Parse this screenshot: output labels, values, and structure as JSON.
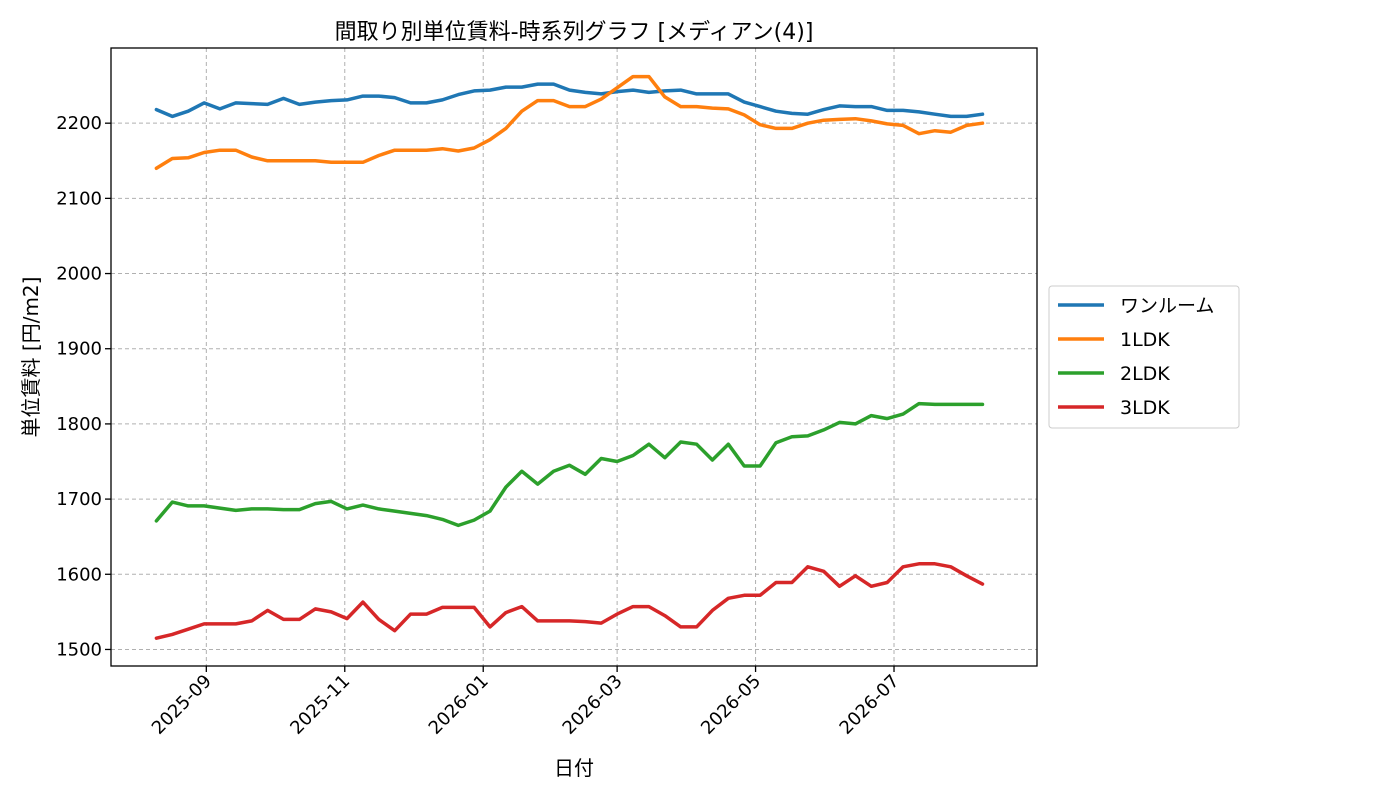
{
  "chart_data": {
    "type": "line",
    "title": "間取り別単位賃料-時系列グラフ [メディアン(4)]",
    "xlabel": "日付",
    "ylabel": "単位賃料 [円/m2]",
    "xlim": [
      "2025-07-21",
      "2026-09-02"
    ],
    "ylim": [
      1478,
      2300
    ],
    "grid": true,
    "legend": "center-right-outside",
    "x_ticks": [
      {
        "date": "2025-09-01",
        "label": "2025-09"
      },
      {
        "date": "2025-11-01",
        "label": "2025-11"
      },
      {
        "date": "2026-01-01",
        "label": "2026-01"
      },
      {
        "date": "2026-03-01",
        "label": "2026-03"
      },
      {
        "date": "2026-05-01",
        "label": "2026-05"
      },
      {
        "date": "2026-07-01",
        "label": "2026-07"
      }
    ],
    "y_ticks": [
      1500,
      1600,
      1700,
      1800,
      1900,
      2000,
      2100,
      2200
    ],
    "x": [
      "2025-08-10",
      "2025-08-17",
      "2025-08-24",
      "2025-08-31",
      "2025-09-07",
      "2025-09-14",
      "2025-09-21",
      "2025-09-28",
      "2025-10-05",
      "2025-10-12",
      "2025-10-19",
      "2025-10-26",
      "2025-11-02",
      "2025-11-09",
      "2025-11-16",
      "2025-11-23",
      "2025-11-30",
      "2025-12-07",
      "2025-12-14",
      "2025-12-21",
      "2025-12-28",
      "2026-01-04",
      "2026-01-11",
      "2026-01-18",
      "2026-01-25",
      "2026-02-01",
      "2026-02-08",
      "2026-02-15",
      "2026-02-22",
      "2026-03-01",
      "2026-03-08",
      "2026-03-15",
      "2026-03-22",
      "2026-03-29",
      "2026-04-05",
      "2026-04-12",
      "2026-04-19",
      "2026-04-26",
      "2026-05-03",
      "2026-05-10",
      "2026-05-17",
      "2026-05-24",
      "2026-05-31",
      "2026-06-07",
      "2026-06-14",
      "2026-06-21",
      "2026-06-28",
      "2026-07-05",
      "2026-07-12",
      "2026-07-19",
      "2026-07-26",
      "2026-08-02",
      "2026-08-09"
    ],
    "series": [
      {
        "name": "ワンルーム",
        "color": "#1f77b4",
        "values": [
          2218,
          2209,
          2216,
          2227,
          2219,
          2227,
          2226,
          2225,
          2233,
          2225,
          2228,
          2230,
          2231,
          2236,
          2236,
          2234,
          2227,
          2227,
          2231,
          2238,
          2243,
          2244,
          2248,
          2248,
          2252,
          2252,
          2244,
          2241,
          2239,
          2242,
          2244,
          2241,
          2243,
          2244,
          2239,
          2239,
          2239,
          2228,
          2222,
          2216,
          2213,
          2212,
          2218,
          2223,
          2222,
          2222,
          2217,
          2217,
          2215,
          2212,
          2209,
          2209,
          2212
        ]
      },
      {
        "name": "1LDK",
        "color": "#ff7f0e",
        "values": [
          2140,
          2153,
          2154,
          2161,
          2164,
          2164,
          2155,
          2150,
          2150,
          2150,
          2150,
          2148,
          2148,
          2148,
          2157,
          2164,
          2164,
          2164,
          2166,
          2163,
          2167,
          2178,
          2193,
          2216,
          2230,
          2230,
          2222,
          2222,
          2232,
          2247,
          2262,
          2262,
          2235,
          2222,
          2222,
          2220,
          2219,
          2211,
          2198,
          2193,
          2193,
          2200,
          2204,
          2205,
          2206,
          2203,
          2199,
          2197,
          2186,
          2190,
          2188,
          2197,
          2200
        ]
      },
      {
        "name": "2LDK",
        "color": "#2ca02c",
        "values": [
          1671,
          1696,
          1691,
          1691,
          1688,
          1685,
          1687,
          1687,
          1686,
          1686,
          1694,
          1697,
          1687,
          1692,
          1687,
          1684,
          1681,
          1678,
          1673,
          1665,
          1672,
          1684,
          1716,
          1737,
          1720,
          1737,
          1745,
          1733,
          1754,
          1750,
          1758,
          1773,
          1755,
          1776,
          1773,
          1752,
          1773,
          1744,
          1744,
          1775,
          1783,
          1784,
          1792,
          1802,
          1800,
          1811,
          1807,
          1813,
          1827,
          1826,
          1826,
          1826,
          1826
        ]
      },
      {
        "name": "3LDK",
        "color": "#d62728",
        "values": [
          1515,
          1520,
          1527,
          1534,
          1534,
          1534,
          1538,
          1552,
          1540,
          1540,
          1554,
          1550,
          1541,
          1563,
          1540,
          1525,
          1547,
          1547,
          1556,
          1556,
          1556,
          1530,
          1549,
          1557,
          1538,
          1538,
          1538,
          1537,
          1535,
          1547,
          1557,
          1557,
          1545,
          1530,
          1530,
          1552,
          1568,
          1572,
          1572,
          1589,
          1589,
          1610,
          1604,
          1584,
          1598,
          1584,
          1589,
          1610,
          1614,
          1614,
          1610,
          1598,
          1587
        ]
      }
    ]
  }
}
